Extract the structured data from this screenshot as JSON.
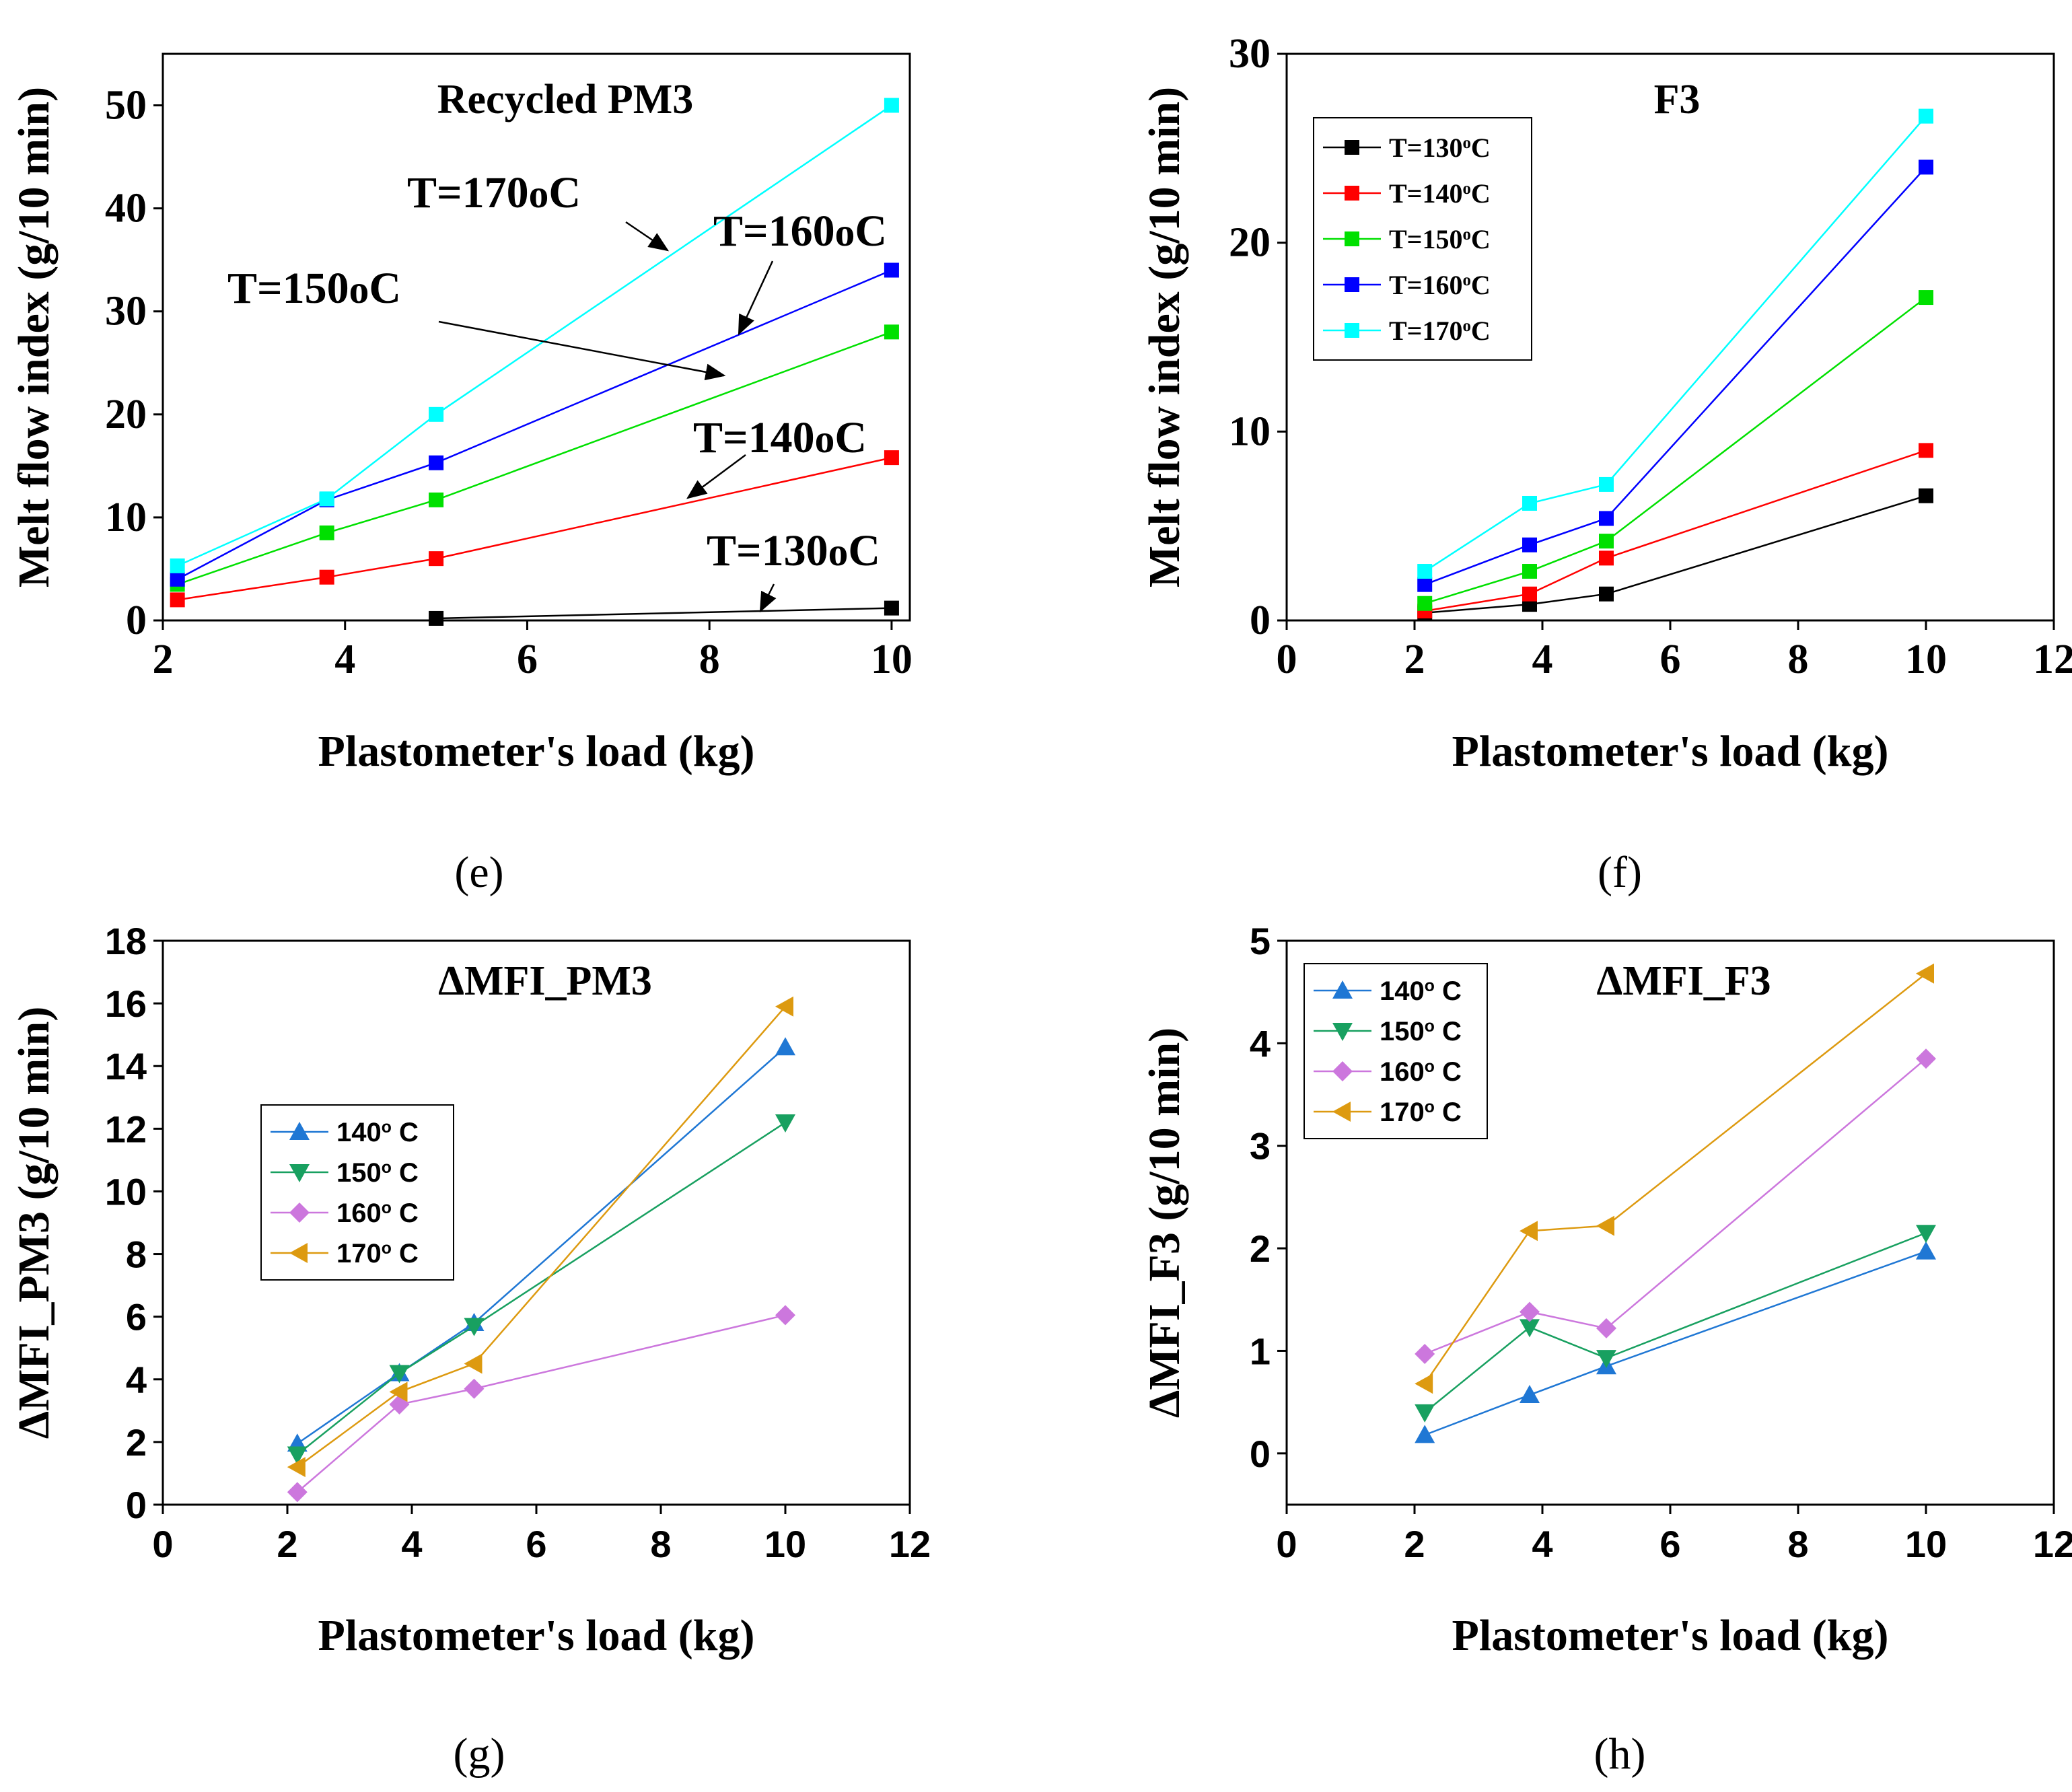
{
  "chart_data": [
    {
      "id": "e",
      "type": "line",
      "title": "Recycled PM3",
      "xlabel": "Plastometer's load (kg)",
      "ylabel": "Melt flow index (g/10 min)",
      "xlim": [
        2,
        10.2
      ],
      "ylim": [
        0,
        55
      ],
      "xticks": [
        2,
        4,
        6,
        8,
        10
      ],
      "yticks": [
        0,
        10,
        20,
        30,
        40,
        50
      ],
      "marker_shape": "square",
      "series": [
        {
          "name": "T=130oC",
          "color": "#000000",
          "x": [
            5,
            10
          ],
          "y": [
            0.2,
            1.2
          ]
        },
        {
          "name": "T=140oC",
          "color": "#ff0000",
          "x": [
            2.16,
            3.8,
            5,
            10
          ],
          "y": [
            2.0,
            4.2,
            6.0,
            15.8
          ]
        },
        {
          "name": "T=150oC",
          "color": "#00e000",
          "x": [
            2.16,
            3.8,
            5,
            10
          ],
          "y": [
            3.5,
            8.5,
            11.7,
            28.0
          ]
        },
        {
          "name": "T=160oC",
          "color": "#0000ff",
          "x": [
            2.16,
            3.8,
            5,
            10
          ],
          "y": [
            4.0,
            11.7,
            15.3,
            34.0
          ]
        },
        {
          "name": "T=170oC",
          "color": "#00ffff",
          "x": [
            2.16,
            3.8,
            5,
            10
          ],
          "y": [
            5.3,
            11.8,
            20.0,
            50.0
          ]
        }
      ],
      "annotations": [
        {
          "base": "T=170",
          "sup": "o",
          "tail": "C"
        },
        {
          "base": "T=160",
          "sup": "o",
          "tail": "C"
        },
        {
          "base": "T=150",
          "sup": "o",
          "tail": "C"
        },
        {
          "base": "T=140",
          "sup": "o",
          "tail": "C"
        },
        {
          "base": "T=130",
          "sup": "o",
          "tail": "C"
        }
      ],
      "panel_label": "(e)"
    },
    {
      "id": "f",
      "type": "line",
      "title": "F3",
      "xlabel": "Plastometer's load (kg)",
      "ylabel": "Melt flow index (g/10 min)",
      "xlim": [
        0,
        12
      ],
      "ylim": [
        0,
        30
      ],
      "xticks": [
        0,
        2,
        4,
        6,
        8,
        10,
        12
      ],
      "yticks": [
        0,
        10,
        20,
        30
      ],
      "marker_shape": "square",
      "legend_position": "top-left",
      "series": [
        {
          "name": "T=130",
          "sup": "o",
          "tail": "C",
          "color": "#000000",
          "x": [
            2.16,
            3.8,
            5,
            10
          ],
          "y": [
            0.4,
            0.85,
            1.4,
            6.6
          ]
        },
        {
          "name": "T=140",
          "sup": "o",
          "tail": "C",
          "color": "#ff0000",
          "x": [
            2.16,
            3.8,
            5,
            10
          ],
          "y": [
            0.5,
            1.4,
            3.3,
            9.0
          ]
        },
        {
          "name": "T=150",
          "sup": "o",
          "tail": "C",
          "color": "#00e000",
          "x": [
            2.16,
            3.8,
            5,
            10
          ],
          "y": [
            0.9,
            2.6,
            4.2,
            17.1
          ]
        },
        {
          "name": "T=160",
          "sup": "o",
          "tail": "C",
          "color": "#0000ff",
          "x": [
            2.16,
            3.8,
            5,
            10
          ],
          "y": [
            1.9,
            4.0,
            5.4,
            24.0
          ]
        },
        {
          "name": "T=170",
          "sup": "o",
          "tail": "C",
          "color": "#00ffff",
          "x": [
            2.16,
            3.8,
            5,
            10
          ],
          "y": [
            2.6,
            6.2,
            7.2,
            26.7
          ]
        }
      ],
      "panel_label": "(f)"
    },
    {
      "id": "g",
      "type": "line",
      "title": "ΔMFI_PM3",
      "xlabel": "Plastometer's load (kg)",
      "ylabel": "ΔMFI_PM3 (g/10 min)",
      "xlim": [
        0,
        12
      ],
      "ylim": [
        0,
        18
      ],
      "xticks": [
        0,
        2,
        4,
        6,
        8,
        10,
        12
      ],
      "yticks": [
        0,
        2,
        4,
        6,
        8,
        10,
        12,
        14,
        16,
        18
      ],
      "legend_position": "middle-left",
      "series": [
        {
          "name": "140",
          "sup": "o",
          "tail": " C",
          "marker": "triangle-up",
          "color": "#1f77d4",
          "x": [
            2.16,
            3.8,
            5,
            10
          ],
          "y": [
            1.95,
            4.2,
            5.8,
            14.6
          ]
        },
        {
          "name": "150",
          "sup": "o",
          "tail": " C",
          "marker": "triangle-down",
          "color": "#18a060",
          "x": [
            2.16,
            3.8,
            5,
            10
          ],
          "y": [
            1.6,
            4.2,
            5.7,
            12.2
          ]
        },
        {
          "name": "160",
          "sup": "o",
          "tail": " C",
          "marker": "diamond",
          "color": "#cc77dd",
          "x": [
            2.16,
            3.8,
            5,
            10
          ],
          "y": [
            0.4,
            3.2,
            3.7,
            6.05
          ]
        },
        {
          "name": "170",
          "sup": "o",
          "tail": " C",
          "marker": "triangle-left",
          "color": "#dd9a10",
          "x": [
            2.16,
            3.8,
            5,
            10
          ],
          "y": [
            1.2,
            3.6,
            4.5,
            15.9
          ]
        }
      ],
      "panel_label": "(g)"
    },
    {
      "id": "h",
      "type": "line",
      "title": "ΔMFI_F3",
      "xlabel": "Plastometer's load (kg)",
      "ylabel": "ΔMFI_F3 (g/10 min)",
      "xlim": [
        0,
        12
      ],
      "ylim": [
        -0.5,
        5
      ],
      "xticks": [
        0,
        2,
        4,
        6,
        8,
        10,
        12
      ],
      "yticks": [
        0,
        1,
        2,
        3,
        4,
        5
      ],
      "legend_position": "top-left",
      "series": [
        {
          "name": "140",
          "sup": "o",
          "tail": " C",
          "marker": "triangle-up",
          "color": "#1f77d4",
          "x": [
            2.16,
            3.8,
            5,
            10
          ],
          "y": [
            0.18,
            0.57,
            0.85,
            1.97
          ]
        },
        {
          "name": "150",
          "sup": "o",
          "tail": " C",
          "marker": "triangle-down",
          "color": "#18a060",
          "x": [
            2.16,
            3.8,
            5,
            10
          ],
          "y": [
            0.4,
            1.23,
            0.93,
            2.15
          ]
        },
        {
          "name": "160",
          "sup": "o",
          "tail": " C",
          "marker": "diamond",
          "color": "#cc77dd",
          "x": [
            2.16,
            3.8,
            5,
            10
          ],
          "y": [
            0.97,
            1.38,
            1.22,
            3.85
          ]
        },
        {
          "name": "170",
          "sup": "o",
          "tail": " C",
          "marker": "triangle-left",
          "color": "#dd9a10",
          "x": [
            2.16,
            3.8,
            5,
            10
          ],
          "y": [
            0.68,
            2.17,
            2.22,
            4.68
          ]
        }
      ],
      "panel_label": "(h)"
    }
  ]
}
